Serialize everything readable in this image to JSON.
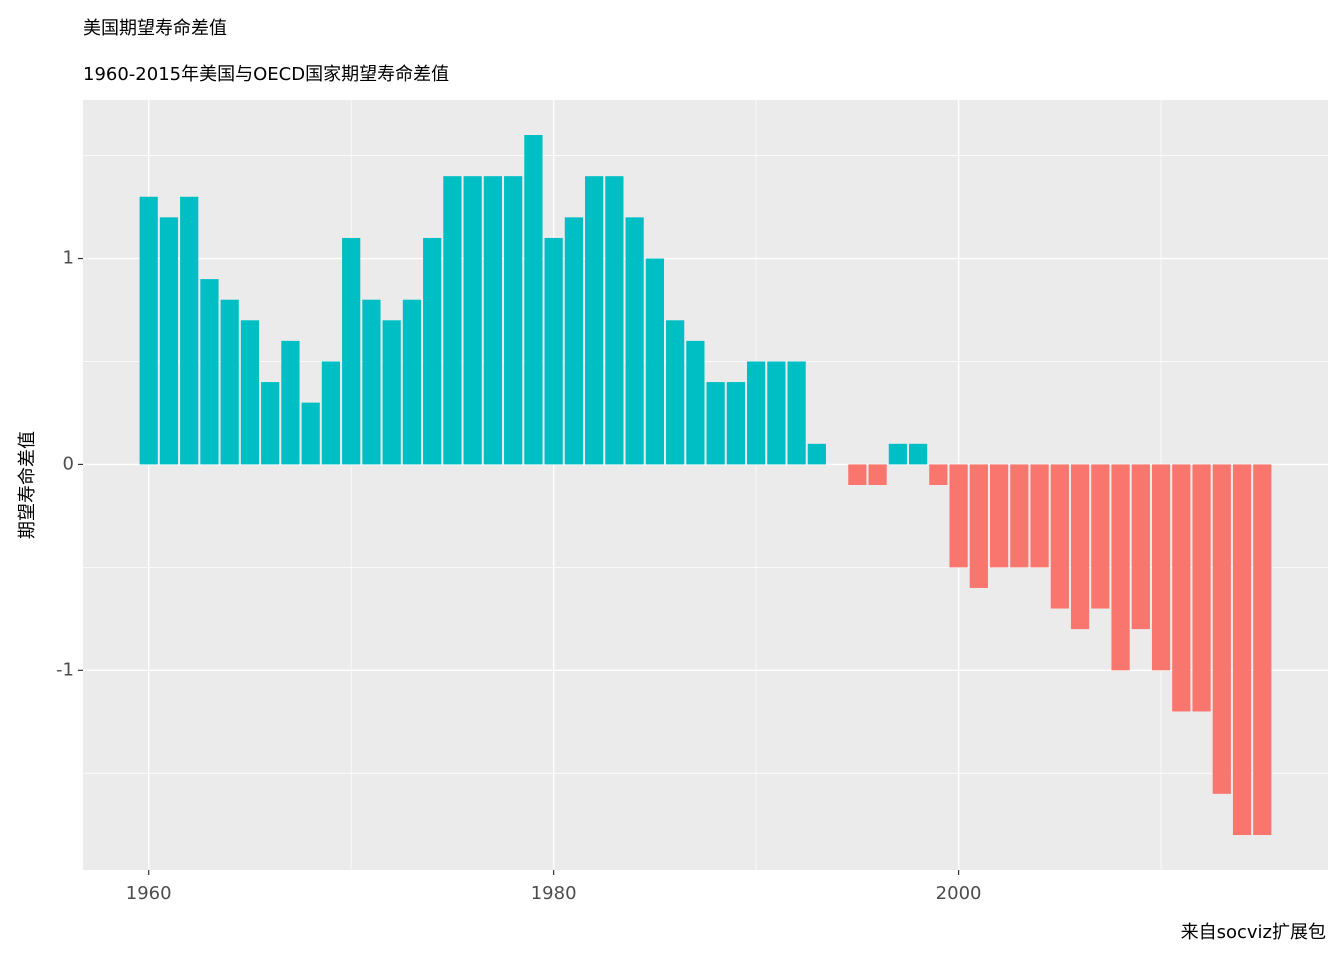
{
  "chart_data": {
    "type": "bar",
    "title": "美国期望寿命差值",
    "subtitle": "1960-2015年美国与OECD国家期望寿命差值",
    "y_label": "期望寿命差值",
    "caption": "来自socviz扩展包",
    "x": [
      1960,
      1961,
      1962,
      1963,
      1964,
      1965,
      1966,
      1967,
      1968,
      1969,
      1970,
      1971,
      1972,
      1973,
      1974,
      1975,
      1976,
      1977,
      1978,
      1979,
      1980,
      1981,
      1982,
      1983,
      1984,
      1985,
      1986,
      1987,
      1988,
      1989,
      1990,
      1991,
      1992,
      1993,
      1994,
      1995,
      1996,
      1997,
      1998,
      1999,
      2000,
      2001,
      2002,
      2003,
      2004,
      2005,
      2006,
      2007,
      2008,
      2009,
      2010,
      2011,
      2012,
      2013,
      2014,
      2015
    ],
    "values": [
      1.3,
      1.2,
      1.3,
      0.9,
      0.8,
      0.7,
      0.4,
      0.6,
      0.3,
      0.5,
      1.1,
      0.8,
      0.7,
      0.8,
      1.1,
      1.4,
      1.4,
      1.4,
      1.4,
      1.6,
      1.1,
      1.2,
      1.4,
      1.4,
      1.2,
      1.0,
      0.7,
      0.6,
      0.4,
      0.4,
      0.5,
      0.5,
      0.5,
      0.1,
      0,
      -0.1,
      -0.1,
      0.1,
      0.1,
      -0.1,
      -0.5,
      -0.6,
      -0.5,
      -0.5,
      -0.5,
      -0.7,
      -0.8,
      -0.7,
      -1.0,
      -0.8,
      -1.0,
      -1.2,
      -1.2,
      -1.6,
      -1.8,
      -1.8
    ],
    "color_positive": "#00BFC4",
    "color_negative": "#F8766D",
    "xlim": [
      1956.755,
      2018.245
    ],
    "xticks": [
      1960,
      1980,
      2000
    ],
    "xminor": [
      1970,
      1990,
      2010
    ],
    "ylim": [
      -1.97,
      1.77
    ],
    "yticks": [
      -1,
      0,
      1
    ],
    "yminor": [
      -1.5,
      -0.5,
      0.5,
      1.5
    ],
    "grid": true
  }
}
